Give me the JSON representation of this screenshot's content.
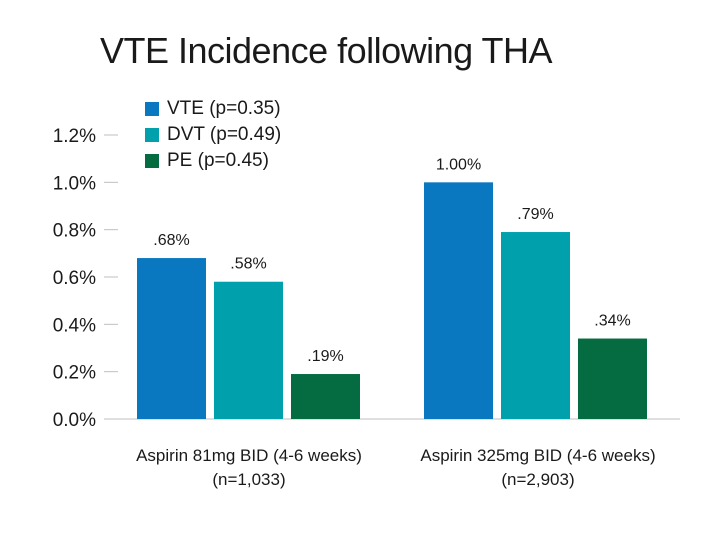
{
  "chart_data": {
    "type": "bar",
    "title": "VTE Incidence following THA",
    "ylim": [
      0,
      1.2
    ],
    "yticks": [
      "0.0%",
      "0.2%",
      "0.4%",
      "0.6%",
      "0.8%",
      "1.0%",
      "1.2%"
    ],
    "ytick_values": [
      0,
      0.2,
      0.4,
      0.6,
      0.8,
      1.0,
      1.2
    ],
    "categories": [
      [
        "Aspirin 81mg BID (4-6 weeks)",
        "(n=1,033)"
      ],
      [
        "Aspirin 325mg BID (4-6 weeks)",
        "(n=2,903)"
      ]
    ],
    "series": [
      {
        "name": "VTE (p=0.35)",
        "color": "#0a77c1",
        "values": [
          0.68,
          1.0
        ],
        "labels": [
          ".68%",
          "1.00%"
        ]
      },
      {
        "name": "DVT (p=0.49)",
        "color": "#00a0ac",
        "values": [
          0.58,
          0.79
        ],
        "labels": [
          ".58%",
          ".79%"
        ]
      },
      {
        "name": "PE (p=0.45)",
        "color": "#056b40",
        "values": [
          0.19,
          0.34
        ],
        "labels": [
          ".19%",
          ".34%"
        ]
      }
    ],
    "grid": false,
    "legend": "top-left"
  }
}
